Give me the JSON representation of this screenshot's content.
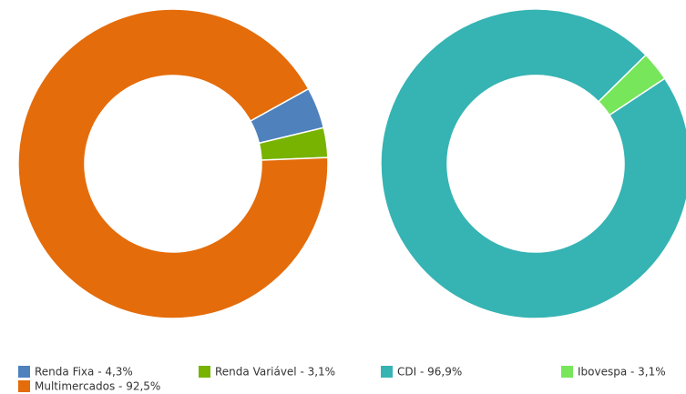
{
  "chart_data": [
    {
      "type": "donut",
      "categories": [
        "Renda Fixa - 4,3%",
        "Renda Variável - 3,1%",
        "Multimercados - 92,5%"
      ],
      "values": [
        4.3,
        3.1,
        92.5
      ],
      "colors": [
        "#4f81bd",
        "#77b300",
        "#e46c0a"
      ]
    },
    {
      "type": "donut",
      "categories": [
        "CDI - 96,9%",
        "Ibovespa - 3,1%"
      ],
      "values": [
        96.9,
        3.1
      ],
      "colors": [
        "#36b3b3",
        "#77e65a"
      ]
    }
  ]
}
